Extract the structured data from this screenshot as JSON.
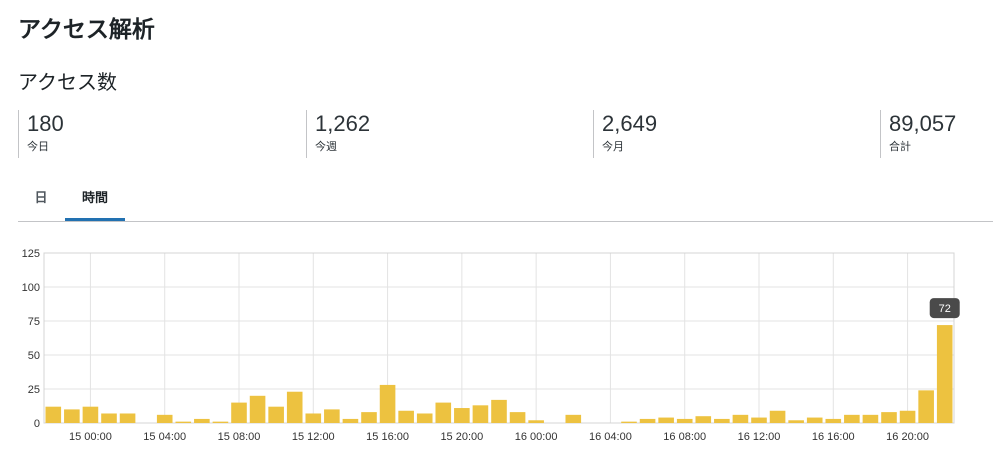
{
  "header": {
    "title": "アクセス解析"
  },
  "access": {
    "title": "アクセス数",
    "stats": [
      {
        "value": "180",
        "label": "今日"
      },
      {
        "value": "1,262",
        "label": "今週"
      },
      {
        "value": "2,649",
        "label": "今月"
      },
      {
        "value": "89,057",
        "label": "合計"
      }
    ]
  },
  "tabs": [
    {
      "label": "日",
      "active": false
    },
    {
      "label": "時間",
      "active": true
    }
  ],
  "chart_data": {
    "type": "bar",
    "title": "",
    "xlabel": "",
    "ylabel": "",
    "ylim": [
      0,
      125
    ],
    "yticks": [
      0,
      25,
      50,
      75,
      100,
      125
    ],
    "grid": true,
    "bar_color": "#edc240",
    "tick_labels": [
      {
        "index": 2,
        "label": "15 00:00"
      },
      {
        "index": 6,
        "label": "15 04:00"
      },
      {
        "index": 10,
        "label": "15 08:00"
      },
      {
        "index": 14,
        "label": "15 12:00"
      },
      {
        "index": 18,
        "label": "15 16:00"
      },
      {
        "index": 22,
        "label": "15 20:00"
      },
      {
        "index": 26,
        "label": "16 00:00"
      },
      {
        "index": 30,
        "label": "16 04:00"
      },
      {
        "index": 34,
        "label": "16 08:00"
      },
      {
        "index": 38,
        "label": "16 12:00"
      },
      {
        "index": 42,
        "label": "16 16:00"
      },
      {
        "index": 46,
        "label": "16 20:00"
      }
    ],
    "values": [
      12,
      10,
      12,
      7,
      7,
      0,
      6,
      1,
      3,
      1,
      15,
      20,
      12,
      23,
      7,
      10,
      3,
      8,
      28,
      9,
      7,
      15,
      11,
      13,
      17,
      8,
      2,
      0,
      6,
      0,
      0,
      1,
      3,
      4,
      3,
      5,
      3,
      6,
      4,
      9,
      2,
      4,
      3,
      6,
      6,
      8,
      9,
      24,
      72
    ],
    "tooltip": {
      "index": 48,
      "label": "72"
    }
  }
}
